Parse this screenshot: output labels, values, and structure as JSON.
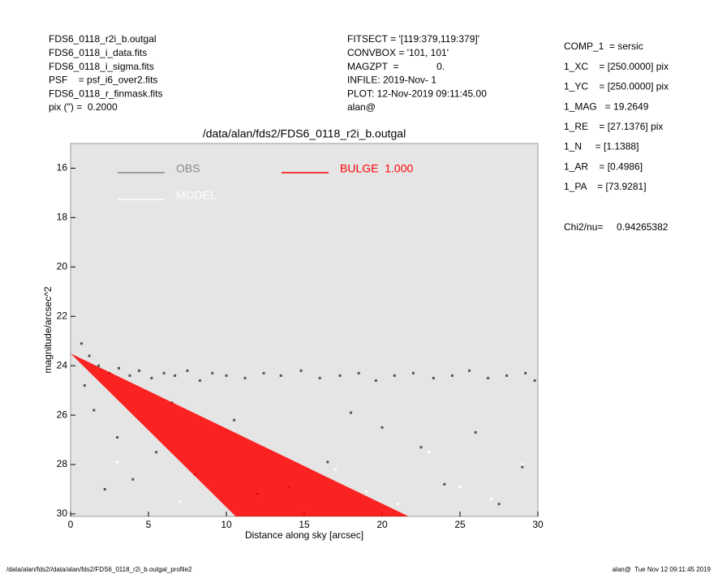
{
  "header": {
    "left": [
      "FDS6_0118_r2i_b.outgal",
      "FDS6_0118_i_data.fits",
      "FDS6_0118_i_sigma.fits",
      "PSF    = psf_i6_over2.fits",
      "FDS6_0118_r_finmask.fits",
      "pix (\") =  0.2000"
    ],
    "middle": [
      "FITSECT = '[119:379,119:379]'",
      "CONVBOX = '101, 101'",
      "MAGZPT  =              0.",
      "INFILE: 2019-Nov- 1",
      "PLOT: 12-Nov-2019 09:11:45.00",
      "alan@"
    ],
    "params": [
      "COMP_1  = sersic",
      "1_XC    = [250.0000] pix",
      "1_YC    = [250.0000] pix",
      "1_MAG   = 19.2649",
      "1_RE    = [27.1376] pix",
      "1_N     = [1.1388]",
      "1_AR    = [0.4986]",
      "1_PA    = [73.9281]"
    ],
    "chi2": "Chi2/nu=     0.94265382"
  },
  "footer": {
    "left": "/data/alan/fds2//data/alan/fds2/FDS6_0118_r2i_b.outgal_profile2",
    "right": "alan@  Tue Nov 12 09:11:45 2019"
  },
  "chart_data": {
    "type": "scatter",
    "title": "/data/alan/fds2/FDS6_0118_r2i_b.outgal",
    "x_label": "Distance along sky [arcsec]",
    "y_label": "magnitude/arcsec^2",
    "xlim": [
      0,
      30
    ],
    "xticks": [
      0,
      5,
      10,
      15,
      20,
      25,
      30
    ],
    "ylim": [
      30.1,
      15
    ],
    "yticks": [
      16,
      18,
      20,
      22,
      24,
      26,
      28,
      30
    ],
    "series": [
      {
        "name": "OBS",
        "color": "#555555",
        "legend_color": "#888888",
        "x": [
          0.7,
          1.2,
          1.8,
          2.5,
          3.1,
          3.8,
          4.4,
          5.2,
          6.0,
          6.7,
          7.5,
          8.3,
          9.1,
          10.0,
          11.2,
          12.4,
          13.5,
          14.8,
          16.0,
          17.3,
          18.5,
          19.6,
          20.8,
          22.0,
          23.3,
          24.5,
          25.6,
          26.8,
          28.0,
          29.2,
          29.8,
          1.5,
          3.0,
          5.5,
          8.0,
          12.0,
          16.5,
          20.0,
          24.0,
          27.5,
          2.2,
          6.5,
          10.5,
          14.0,
          18.0,
          22.5,
          26.0,
          29.0,
          0.9,
          4.0
        ],
        "values": [
          23.1,
          23.6,
          24.0,
          24.3,
          24.1,
          24.4,
          24.2,
          24.5,
          24.3,
          24.4,
          24.2,
          24.6,
          24.3,
          24.4,
          24.5,
          24.3,
          24.4,
          24.2,
          24.5,
          24.4,
          24.3,
          24.6,
          24.4,
          24.3,
          24.5,
          24.4,
          24.2,
          24.5,
          24.4,
          24.3,
          24.6,
          25.8,
          26.9,
          27.5,
          28.4,
          29.2,
          27.9,
          26.5,
          28.8,
          29.6,
          29.0,
          25.5,
          26.2,
          28.9,
          25.9,
          27.3,
          26.7,
          28.1,
          24.8,
          28.6
        ]
      },
      {
        "name": "MODEL",
        "color": "#ffffff",
        "x": [
          3,
          7,
          9,
          12,
          15,
          17,
          19,
          21,
          23,
          25,
          27,
          29
        ],
        "values": [
          27.9,
          29.5,
          28.7,
          29.3,
          29.8,
          28.2,
          29.1,
          29.6,
          27.5,
          28.9,
          29.4,
          28.0
        ]
      },
      {
        "name": "BULGE  1.000",
        "color": "#ff0000",
        "x": [
          0,
          21.7
        ],
        "values": [
          23.5,
          30.1
        ],
        "x_inner": [
          0,
          10.6
        ],
        "values_inner": [
          23.5,
          30.1
        ]
      }
    ]
  }
}
